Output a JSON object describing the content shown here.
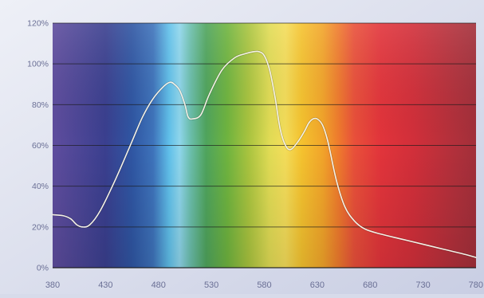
{
  "chart_data": {
    "type": "area",
    "title": "",
    "xlabel": "",
    "ylabel": "",
    "xlim": [
      380,
      780
    ],
    "ylim": [
      0,
      120
    ],
    "grid": true,
    "x_ticks": [
      380,
      430,
      480,
      530,
      580,
      630,
      680,
      730,
      780
    ],
    "x_tick_labels": [
      "380",
      "430",
      "480",
      "530",
      "580",
      "630",
      "680",
      "730",
      "780"
    ],
    "y_ticks": [
      0,
      20,
      40,
      60,
      80,
      100,
      120
    ],
    "y_tick_labels": [
      "0%",
      "20%",
      "40%",
      "60%",
      "80%",
      "100%",
      "120%"
    ],
    "series": [
      {
        "name": "",
        "color": "#f4f1e6",
        "x": [
          380,
          390,
          397,
          403,
          408,
          415,
          425,
          440,
          455,
          465,
          475,
          485,
          491,
          495,
          500,
          505,
          508,
          512,
          520,
          528,
          540,
          552,
          562,
          570,
          575,
          580,
          585,
          590,
          595,
          600,
          605,
          612,
          618,
          622,
          626,
          630,
          635,
          640,
          648,
          656,
          665,
          675,
          690,
          710,
          730,
          750,
          770,
          780
        ],
        "y": [
          26,
          25.5,
          24,
          21,
          20,
          21,
          28,
          44,
          62,
          74,
          83,
          89,
          91,
          90,
          87,
          80,
          74,
          73,
          75,
          85,
          97,
          103,
          105,
          106,
          106,
          104,
          97,
          84,
          68,
          60,
          58,
          62,
          67,
          71,
          73,
          73,
          70,
          62,
          43,
          30,
          23,
          19,
          16.5,
          14,
          11.5,
          9,
          6.5,
          5
        ]
      }
    ]
  },
  "colors": {
    "background": "#d7dbea",
    "grid_line": "#1a1a1a",
    "tick_label": "#6a6f95",
    "curve": "#f4f1e6",
    "spectrum": [
      {
        "nm": 380,
        "color": "#5f4d9e"
      },
      {
        "nm": 430,
        "color": "#3a3f8f"
      },
      {
        "nm": 455,
        "color": "#2f56a3"
      },
      {
        "nm": 475,
        "color": "#3e73bb"
      },
      {
        "nm": 490,
        "color": "#60c0ea"
      },
      {
        "nm": 500,
        "color": "#8fd6ec"
      },
      {
        "nm": 510,
        "color": "#6cbfae"
      },
      {
        "nm": 525,
        "color": "#4fa45d"
      },
      {
        "nm": 545,
        "color": "#6fb43f"
      },
      {
        "nm": 565,
        "color": "#a9c43f"
      },
      {
        "nm": 585,
        "color": "#e1dc55"
      },
      {
        "nm": 600,
        "color": "#f4dd5a"
      },
      {
        "nm": 615,
        "color": "#f5c32f"
      },
      {
        "nm": 635,
        "color": "#f2a52a"
      },
      {
        "nm": 650,
        "color": "#ef7b2d"
      },
      {
        "nm": 665,
        "color": "#e9503a"
      },
      {
        "nm": 690,
        "color": "#e2343b"
      },
      {
        "nm": 720,
        "color": "#d22f3a"
      },
      {
        "nm": 760,
        "color": "#b1303b"
      },
      {
        "nm": 780,
        "color": "#a22f3a"
      }
    ]
  }
}
